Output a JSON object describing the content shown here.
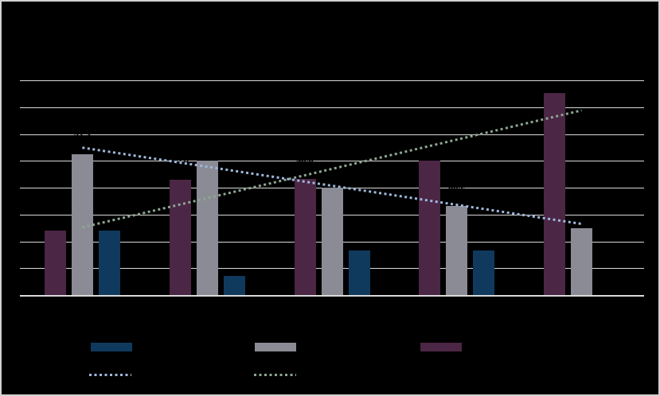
{
  "window": {
    "background": "#000000",
    "border_color": "#d2d2d2"
  },
  "chart_data": {
    "type": "bar",
    "title": "",
    "xlabel": "",
    "ylabel": "",
    "categories": [
      "",
      "",
      "",
      "",
      ""
    ],
    "series": [
      {
        "name": "plum-bars",
        "color": "#4B2645",
        "values": [
          24.0,
          43.0,
          43.3,
          50.1,
          75.3
        ]
      },
      {
        "name": "gray-bars",
        "color": "#8B8B95",
        "values": [
          52.3,
          50.1,
          40.0,
          33.2,
          24.9
        ]
      },
      {
        "name": "navy-bars",
        "color": "#0F3A5E",
        "values": [
          24.0,
          7.1,
          16.6,
          16.6,
          null
        ]
      }
    ],
    "trendlines": [
      {
        "name": "blue-dotted-trendline",
        "color": "#9FB8DB",
        "values": [
          54.9,
          47.8,
          40.7,
          33.6,
          26.5
        ]
      },
      {
        "name": "green-dotted-trendline",
        "color": "#8EA591",
        "values": [
          25.2,
          36.1,
          47.0,
          57.9,
          68.8
        ]
      }
    ],
    "ylim": [
      0,
      80
    ],
    "grid_step": 10,
    "grid_on": true,
    "grid_color": "#D9D9D9",
    "axis_color": "#D9D9D9",
    "data_label_color": "#000000",
    "legend_position": "bottom"
  },
  "legend": {
    "bar_items": [
      {
        "name": "navy",
        "color": "#0F3A5E",
        "label": ""
      },
      {
        "name": "gray",
        "color": "#8B8B95",
        "label": ""
      },
      {
        "name": "plum",
        "color": "#4B2645",
        "label": ""
      }
    ],
    "trend_items": [
      {
        "name": "blue-dotted",
        "color": "#9FB8DB",
        "label": ""
      },
      {
        "name": "green-dotted",
        "color": "#8EA591",
        "label": ""
      }
    ]
  }
}
